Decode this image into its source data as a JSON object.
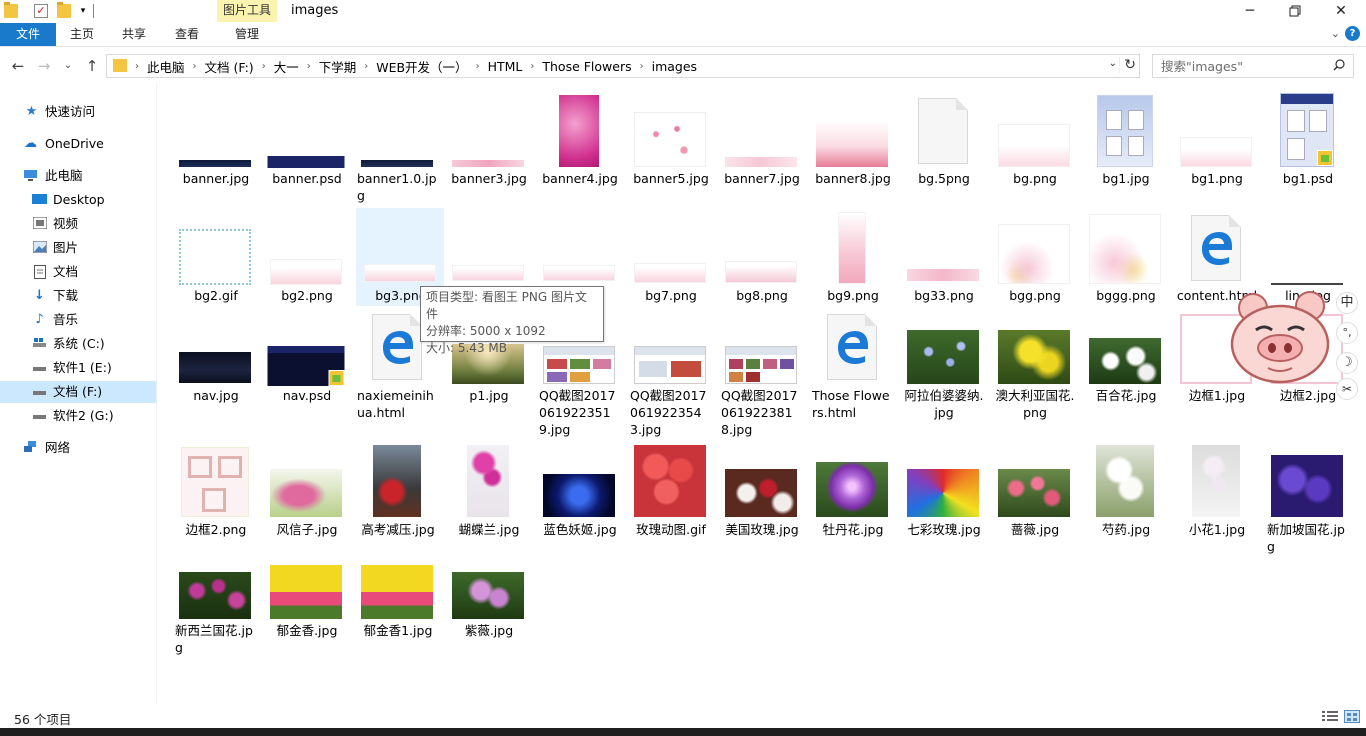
{
  "window": {
    "title": "images",
    "context_tab": "图片工具",
    "controls": [
      "minimize",
      "maximize",
      "close"
    ]
  },
  "ribbon": {
    "tabs": [
      "文件",
      "主页",
      "共享",
      "查看",
      "管理"
    ]
  },
  "address": {
    "crumbs": [
      "此电脑",
      "文档 (F:)",
      "大一",
      "下学期",
      "WEB开发（一）",
      "HTML",
      "Those Flowers",
      "images"
    ]
  },
  "search": {
    "placeholder": "搜索\"images\""
  },
  "sidebar": {
    "items": [
      {
        "label": "快速访问",
        "icon": "star-icon"
      },
      {
        "label": "OneDrive",
        "icon": "cloud-icon"
      },
      {
        "label": "此电脑",
        "icon": "computer-icon"
      },
      {
        "label": "Desktop",
        "icon": "desktop-icon"
      },
      {
        "label": "视频",
        "icon": "video-icon"
      },
      {
        "label": "图片",
        "icon": "pictures-icon"
      },
      {
        "label": "文档",
        "icon": "documents-icon"
      },
      {
        "label": "下载",
        "icon": "download-icon"
      },
      {
        "label": "音乐",
        "icon": "music-icon"
      },
      {
        "label": "系统 (C:)",
        "icon": "drive-icon"
      },
      {
        "label": "软件1 (E:)",
        "icon": "drive-icon"
      },
      {
        "label": "文档 (F:)",
        "icon": "drive-icon",
        "selected": true
      },
      {
        "label": "软件2 (G:)",
        "icon": "drive-icon"
      },
      {
        "label": "网络",
        "icon": "network-icon"
      }
    ]
  },
  "files": {
    "row1": [
      "banner.jpg",
      "banner.psd",
      "banner1.0.jpg",
      "banner3.jpg",
      "banner4.jpg",
      "banner5.jpg",
      "banner7.jpg",
      "banner8.jpg",
      "bg.5png",
      "bg.png",
      "bg1.jpg",
      "bg1.png",
      "bg1.psd"
    ],
    "row2": [
      "bg2.gif",
      "bg2.png",
      "bg3.png",
      "",
      "",
      "bg7.png",
      "bg8.png",
      "bg9.png",
      "bg33.png",
      "bgg.png",
      "bggg.png",
      "content.html",
      "line.jpg"
    ],
    "row3": [
      "nav.jpg",
      "nav.psd",
      "naxiemeinihua.html",
      "p1.jpg",
      "QQ截图20170619223519.jpg",
      "QQ截图20170619223543.jpg",
      "QQ截图20170619223818.jpg",
      "Those Flowers.html",
      "阿拉伯婆婆纳.jpg",
      "澳大利亚国花.png",
      "百合花.jpg",
      "边框1.jpg",
      "边框2.jpg"
    ],
    "row4": [
      "边框2.png",
      "风信子.jpg",
      "高考减压.jpg",
      "蝴蝶兰.jpg",
      "蓝色妖姬.jpg",
      "玫瑰动图.gif",
      "美国玫瑰.jpg",
      "牡丹花.jpg",
      "七彩玫瑰.jpg",
      "蔷薇.jpg",
      "芍药.jpg",
      "小花1.jpg",
      "新加坡国花.jpg"
    ],
    "row5": [
      "新西兰国花.jpg",
      "郁金香.jpg",
      "郁金香1.jpg",
      "紫薇.jpg"
    ]
  },
  "tooltip": {
    "line1": "项目类型: 看图王 PNG 图片文件",
    "line2": "分辨率: 5000 x 1092",
    "line3": "大小: 5.43 MB"
  },
  "ime": {
    "lang": "中",
    "punct": "°,",
    "moon": "☽",
    "tool": "✂"
  },
  "status": {
    "count": "56 个项目"
  },
  "colors": {
    "accent": "#1979ca",
    "selected_bg": "#cce8ff",
    "context_tab_bg": "#fbf3b0"
  }
}
